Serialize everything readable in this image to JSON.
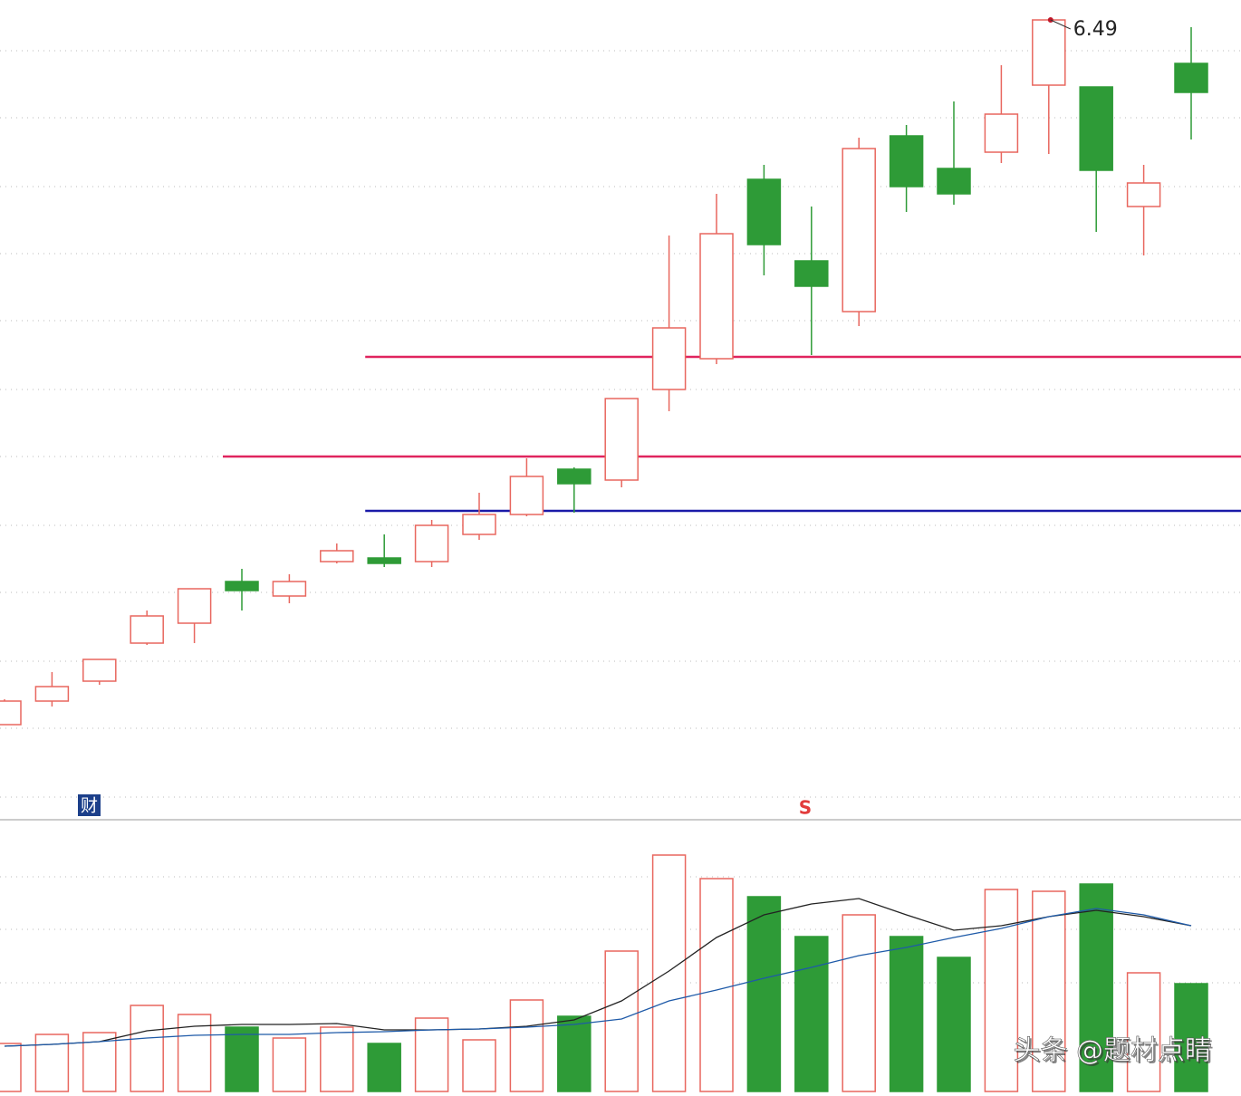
{
  "chart_data": {
    "type": "candlestick",
    "up_color": "#e8675f",
    "down_color": "#2e9b37",
    "ylim": [
      2.075,
      6.6
    ],
    "yticks": [
      6.32,
      5.95,
      5.57,
      5.2,
      4.83,
      4.45,
      4.08,
      3.7,
      3.33,
      2.95,
      2.58,
      2.2
    ],
    "grid": true,
    "open": [
      2.6,
      2.73,
      2.84,
      3.05,
      3.16,
      3.39,
      3.31,
      3.5,
      3.52,
      3.5,
      3.65,
      3.76,
      4.01,
      3.95,
      4.45,
      4.62,
      5.61,
      5.16,
      4.88,
      5.85,
      5.67,
      5.76,
      6.13,
      6.12,
      5.46,
      6.25
    ],
    "high": [
      2.74,
      2.89,
      2.96,
      3.23,
      3.35,
      3.46,
      3.43,
      3.6,
      3.65,
      3.73,
      3.88,
      4.07,
      4.02,
      4.4,
      5.3,
      5.53,
      5.69,
      5.46,
      5.84,
      5.91,
      6.04,
      6.24,
      6.49,
      6.12,
      5.69,
      6.45
    ],
    "low": [
      2.6,
      2.7,
      2.82,
      3.04,
      3.05,
      3.23,
      3.27,
      3.49,
      3.47,
      3.47,
      3.62,
      3.75,
      3.77,
      3.91,
      4.33,
      4.59,
      5.08,
      4.64,
      4.8,
      5.43,
      5.47,
      5.7,
      5.75,
      5.32,
      5.19,
      5.83
    ],
    "close": [
      2.73,
      2.81,
      2.96,
      3.2,
      3.35,
      3.34,
      3.39,
      3.56,
      3.49,
      3.7,
      3.76,
      3.97,
      3.93,
      4.4,
      4.79,
      5.31,
      5.25,
      5.02,
      5.78,
      5.57,
      5.53,
      5.97,
      6.49,
      5.66,
      5.59,
      6.09
    ],
    "high_label_index": 22,
    "hlines": [
      {
        "value": 4.63,
        "color": "#e0245e",
        "from": 8
      },
      {
        "value": 4.08,
        "color": "#e0245e",
        "from": 5
      },
      {
        "value": 3.78,
        "color": "#1a1aa8",
        "from": 8
      }
    ],
    "badges": [
      "财",
      "S"
    ],
    "volume": [
      53,
      63,
      65,
      95,
      85,
      71,
      59,
      71,
      53,
      81,
      57,
      101,
      83,
      155,
      261,
      235,
      215,
      171,
      195,
      171,
      148,
      223,
      221,
      229,
      131,
      119
    ],
    "volume_ylim": [
      0,
      300
    ],
    "volume_yticks": [
      120,
      179,
      237
    ],
    "volume_ma": [
      {
        "color": "#222222",
        "values": [
          50,
          52,
          55,
          67,
          72,
          74,
          74,
          75,
          68,
          68,
          69,
          72,
          79,
          100,
          133,
          170,
          195,
          207,
          213,
          195,
          178,
          183,
          193,
          200,
          193,
          183
        ]
      },
      {
        "color": "#1e5aa8",
        "values": [
          50,
          52,
          55,
          59,
          62,
          63,
          63,
          65,
          66,
          68,
          69,
          71,
          74,
          80,
          100,
          112,
          125,
          137,
          150,
          159,
          170,
          180,
          193,
          202,
          195,
          183
        ]
      }
    ],
    "watermark": "头条 @题材点睛"
  }
}
